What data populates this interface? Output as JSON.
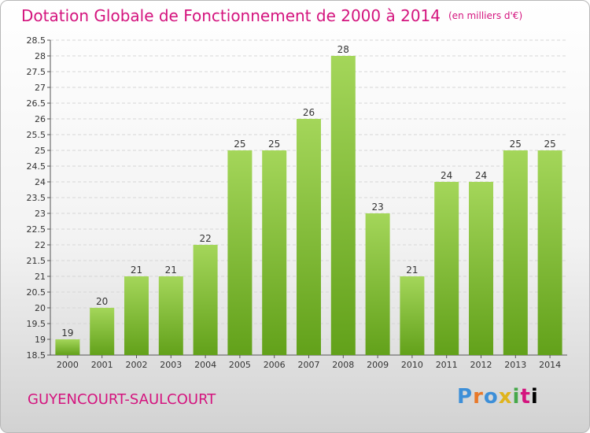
{
  "header": {
    "title": "Dotation Globale de Fonctionnement de 2000 à 2014",
    "unit": "(en milliers d'€)"
  },
  "footer": {
    "city": "GUYENCOURT-SAULCOURT",
    "logo_text": "Proxiti"
  },
  "colors": {
    "accent": "#d4147e",
    "bar_top": "#a4d65a",
    "bar_bottom": "#62a11a"
  },
  "chart_data": {
    "type": "bar",
    "title": "Dotation Globale de Fonctionnement de 2000 à 2014",
    "subtitle": "(en milliers d'€)",
    "categories": [
      "2000",
      "2001",
      "2002",
      "2003",
      "2004",
      "2005",
      "2006",
      "2007",
      "2008",
      "2009",
      "2010",
      "2011",
      "2012",
      "2013",
      "2014"
    ],
    "values": [
      19,
      20,
      21,
      21,
      22,
      25,
      25,
      26,
      28,
      23,
      21,
      24,
      24,
      25,
      25
    ],
    "ylim": [
      18.5,
      28.5
    ],
    "yticks": [
      "18.5",
      "19",
      "19.5",
      "20",
      "20.5",
      "21",
      "21.5",
      "22",
      "22.5",
      "23",
      "23.5",
      "24",
      "24.5",
      "25",
      "25.5",
      "26",
      "26.5",
      "27",
      "27.5",
      "28",
      "28.5"
    ],
    "xlabel": "",
    "ylabel": "",
    "grid": true
  }
}
